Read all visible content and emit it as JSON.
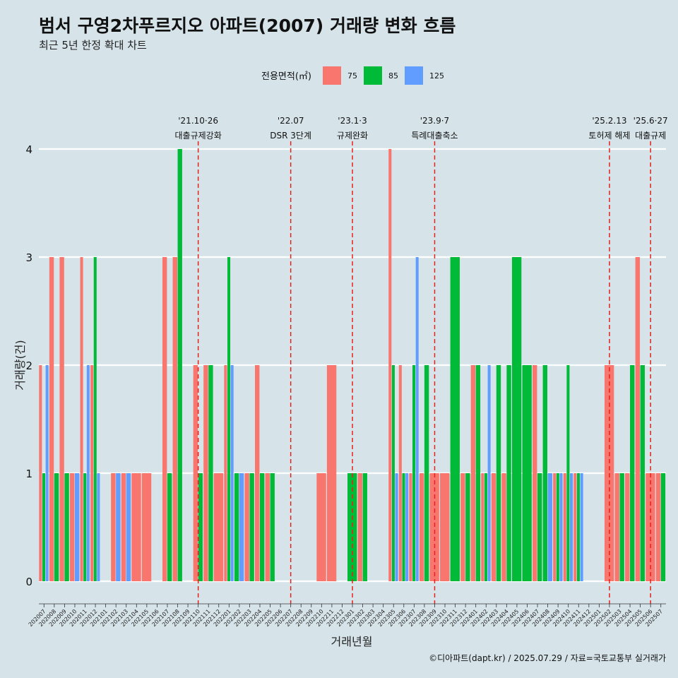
{
  "colors": {
    "background": "#d6e4ea",
    "area75": "#f8766d",
    "area85": "#00ba38",
    "area125": "#619cff",
    "event_line": "#e8211c",
    "grid": "#ffffff"
  },
  "chart_data": {
    "type": "bar",
    "title": "범서 구영2차푸르지오 아파트(2007) 거래량 변화 흐름",
    "subtitle": "최근 5년 한정 확대 차트",
    "xlabel": "거래년월",
    "ylabel": "거래량(건)",
    "ylim": [
      0,
      4
    ],
    "yticks": [
      "0",
      "1",
      "2",
      "3",
      "4"
    ],
    "legend": {
      "title": "전용면적(㎡)",
      "placement": "top",
      "entries": [
        "75",
        "85",
        "125"
      ]
    },
    "categories": [
      "202007",
      "202008",
      "202009",
      "202010",
      "202011",
      "202012",
      "202101",
      "202102",
      "202103",
      "202104",
      "202105",
      "202106",
      "202107",
      "202108",
      "202109",
      "202110",
      "202111",
      "202112",
      "202201",
      "202202",
      "202203",
      "202204",
      "202205",
      "202206",
      "202207",
      "202208",
      "202209",
      "202210",
      "202211",
      "202212",
      "202301",
      "202302",
      "202303",
      "202304",
      "202305",
      "202306",
      "202307",
      "202308",
      "202309",
      "202310",
      "202311",
      "202312",
      "202401",
      "202402",
      "202403",
      "202404",
      "202405",
      "202406",
      "202407",
      "202408",
      "202409",
      "202410",
      "202411",
      "202412",
      "202501",
      "202502",
      "202503",
      "202504",
      "202505",
      "202506",
      "202507"
    ],
    "bars": [
      {
        "month": "202007",
        "area": "75",
        "value": 2
      },
      {
        "month": "202007",
        "area": "85",
        "value": 1
      },
      {
        "month": "202007",
        "area": "125",
        "value": 2
      },
      {
        "month": "202008",
        "area": "75",
        "value": 3
      },
      {
        "month": "202008",
        "area": "85",
        "value": 1
      },
      {
        "month": "202009",
        "area": "75",
        "value": 3
      },
      {
        "month": "202009",
        "area": "85",
        "value": 1
      },
      {
        "month": "202010",
        "area": "75",
        "value": 1
      },
      {
        "month": "202010",
        "area": "125",
        "value": 1
      },
      {
        "month": "202011",
        "area": "75",
        "value": 3
      },
      {
        "month": "202011",
        "area": "85",
        "value": 1
      },
      {
        "month": "202011",
        "area": "125",
        "value": 2
      },
      {
        "month": "202012",
        "area": "75",
        "value": 2
      },
      {
        "month": "202012",
        "area": "85",
        "value": 3
      },
      {
        "month": "202012",
        "area": "125",
        "value": 1
      },
      {
        "month": "202102",
        "area": "75",
        "value": 1
      },
      {
        "month": "202102",
        "area": "125",
        "value": 1
      },
      {
        "month": "202103",
        "area": "75",
        "value": 1
      },
      {
        "month": "202103",
        "area": "125",
        "value": 1
      },
      {
        "month": "202104",
        "area": "75",
        "value": 1
      },
      {
        "month": "202105",
        "area": "75",
        "value": 1
      },
      {
        "month": "202107",
        "area": "75",
        "value": 3
      },
      {
        "month": "202107",
        "area": "85",
        "value": 1
      },
      {
        "month": "202108",
        "area": "75",
        "value": 3
      },
      {
        "month": "202108",
        "area": "85",
        "value": 4
      },
      {
        "month": "202110",
        "area": "75",
        "value": 2
      },
      {
        "month": "202110",
        "area": "85",
        "value": 1
      },
      {
        "month": "202111",
        "area": "75",
        "value": 2
      },
      {
        "month": "202111",
        "area": "85",
        "value": 2
      },
      {
        "month": "202112",
        "area": "75",
        "value": 1
      },
      {
        "month": "202201",
        "area": "75",
        "value": 2
      },
      {
        "month": "202201",
        "area": "85",
        "value": 3
      },
      {
        "month": "202201",
        "area": "125",
        "value": 2
      },
      {
        "month": "202202",
        "area": "85",
        "value": 1
      },
      {
        "month": "202202",
        "area": "125",
        "value": 1
      },
      {
        "month": "202203",
        "area": "75",
        "value": 1
      },
      {
        "month": "202203",
        "area": "85",
        "value": 1
      },
      {
        "month": "202204",
        "area": "75",
        "value": 2
      },
      {
        "month": "202204",
        "area": "85",
        "value": 1
      },
      {
        "month": "202205",
        "area": "75",
        "value": 1
      },
      {
        "month": "202205",
        "area": "85",
        "value": 1
      },
      {
        "month": "202210",
        "area": "75",
        "value": 1
      },
      {
        "month": "202211",
        "area": "75",
        "value": 2
      },
      {
        "month": "202301",
        "area": "85",
        "value": 1
      },
      {
        "month": "202302",
        "area": "75",
        "value": 1
      },
      {
        "month": "202302",
        "area": "85",
        "value": 1
      },
      {
        "month": "202305",
        "area": "75",
        "value": 4
      },
      {
        "month": "202305",
        "area": "85",
        "value": 2
      },
      {
        "month": "202305",
        "area": "125",
        "value": 1
      },
      {
        "month": "202306",
        "area": "75",
        "value": 2
      },
      {
        "month": "202306",
        "area": "85",
        "value": 1
      },
      {
        "month": "202306",
        "area": "125",
        "value": 1
      },
      {
        "month": "202307",
        "area": "75",
        "value": 1
      },
      {
        "month": "202307",
        "area": "85",
        "value": 2
      },
      {
        "month": "202307",
        "area": "125",
        "value": 3
      },
      {
        "month": "202308",
        "area": "75",
        "value": 1
      },
      {
        "month": "202308",
        "area": "85",
        "value": 2
      },
      {
        "month": "202309",
        "area": "75",
        "value": 1
      },
      {
        "month": "202310",
        "area": "75",
        "value": 1
      },
      {
        "month": "202311",
        "area": "85",
        "value": 3
      },
      {
        "month": "202312",
        "area": "75",
        "value": 1
      },
      {
        "month": "202312",
        "area": "85",
        "value": 1
      },
      {
        "month": "202401",
        "area": "75",
        "value": 2
      },
      {
        "month": "202401",
        "area": "85",
        "value": 2
      },
      {
        "month": "202402",
        "area": "75",
        "value": 1
      },
      {
        "month": "202402",
        "area": "85",
        "value": 1
      },
      {
        "month": "202402",
        "area": "125",
        "value": 2
      },
      {
        "month": "202403",
        "area": "75",
        "value": 1
      },
      {
        "month": "202403",
        "area": "85",
        "value": 2
      },
      {
        "month": "202404",
        "area": "75",
        "value": 1
      },
      {
        "month": "202404",
        "area": "85",
        "value": 2
      },
      {
        "month": "202405",
        "area": "85",
        "value": 3
      },
      {
        "month": "202406",
        "area": "85",
        "value": 2
      },
      {
        "month": "202407",
        "area": "75",
        "value": 2
      },
      {
        "month": "202407",
        "area": "85",
        "value": 1
      },
      {
        "month": "202408",
        "area": "85",
        "value": 2
      },
      {
        "month": "202408",
        "area": "125",
        "value": 1
      },
      {
        "month": "202409",
        "area": "75",
        "value": 1
      },
      {
        "month": "202409",
        "area": "85",
        "value": 1
      },
      {
        "month": "202409",
        "area": "125",
        "value": 1
      },
      {
        "month": "202410",
        "area": "75",
        "value": 1
      },
      {
        "month": "202410",
        "area": "85",
        "value": 2
      },
      {
        "month": "202410",
        "area": "125",
        "value": 1
      },
      {
        "month": "202411",
        "area": "75",
        "value": 1
      },
      {
        "month": "202411",
        "area": "85",
        "value": 1
      },
      {
        "month": "202411",
        "area": "125",
        "value": 1
      },
      {
        "month": "202502",
        "area": "75",
        "value": 2
      },
      {
        "month": "202503",
        "area": "75",
        "value": 1
      },
      {
        "month": "202503",
        "area": "85",
        "value": 1
      },
      {
        "month": "202504",
        "area": "75",
        "value": 1
      },
      {
        "month": "202504",
        "area": "85",
        "value": 2
      },
      {
        "month": "202505",
        "area": "75",
        "value": 3
      },
      {
        "month": "202505",
        "area": "85",
        "value": 2
      },
      {
        "month": "202506",
        "area": "75",
        "value": 1
      },
      {
        "month": "202507",
        "area": "75",
        "value": 1
      },
      {
        "month": "202507",
        "area": "85",
        "value": 1
      }
    ],
    "events": [
      {
        "month": "202110",
        "date": "'21.10·26",
        "label": "대출규제강화"
      },
      {
        "month": "202207",
        "date": "'22.07",
        "label": "DSR 3단계"
      },
      {
        "month": "202301",
        "date": "'23.1·3",
        "label": "규제완화"
      },
      {
        "month": "202309",
        "date": "'23.9·7",
        "label": "특례대출축소"
      },
      {
        "month": "202502",
        "date": "'25.2.13",
        "label": "토허제 해제"
      },
      {
        "month": "202506",
        "date": "'25.6·27",
        "label": "대출규제"
      }
    ]
  },
  "caption": "©디아파트(dapt.kr) / 2025.07.29 / 자료=국토교통부 실거래가"
}
